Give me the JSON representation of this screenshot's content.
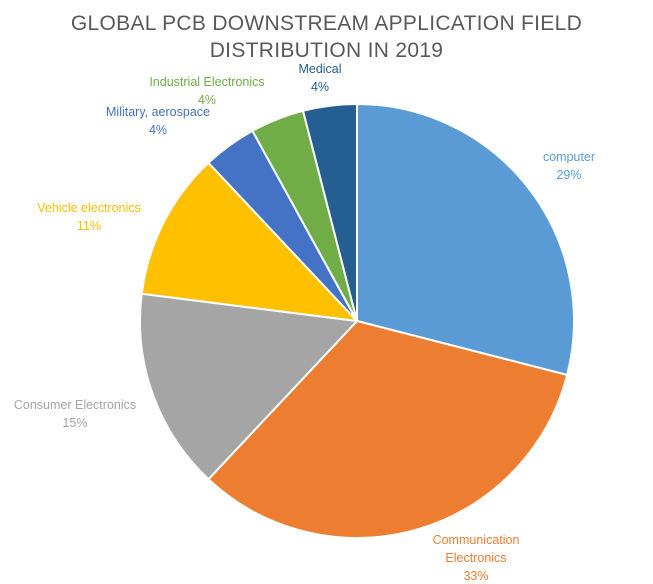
{
  "chart_data": {
    "type": "pie",
    "title_lines": [
      "GLOBAL PCB DOWNSTREAM APPLICATION FIELD",
      "DISTRIBUTION IN 2019"
    ],
    "slices": [
      {
        "label": "computer",
        "value": 29,
        "value_label": "29%",
        "color": "#5B9BD5"
      },
      {
        "label": "Communication Electronics",
        "value": 33,
        "value_label": "33%",
        "color": "#ED7D31"
      },
      {
        "label": "Consumer Electronics",
        "value": 15,
        "value_label": "15%",
        "color": "#A5A5A5"
      },
      {
        "label": "Vehicle electronics",
        "value": 11,
        "value_label": "11%",
        "color": "#FFC000"
      },
      {
        "label": "Military, aerospace",
        "value": 4,
        "value_label": "4%",
        "color": "#4472C4"
      },
      {
        "label": "Industrial Electronics",
        "value": 4,
        "value_label": "4%",
        "color": "#70AD47"
      },
      {
        "label": "Medical",
        "value": 4,
        "value_label": "4%",
        "color": "#255E91"
      }
    ],
    "start_angle_deg": 0,
    "direction": "clockwise",
    "legend": "none",
    "data_labels": "outside"
  }
}
